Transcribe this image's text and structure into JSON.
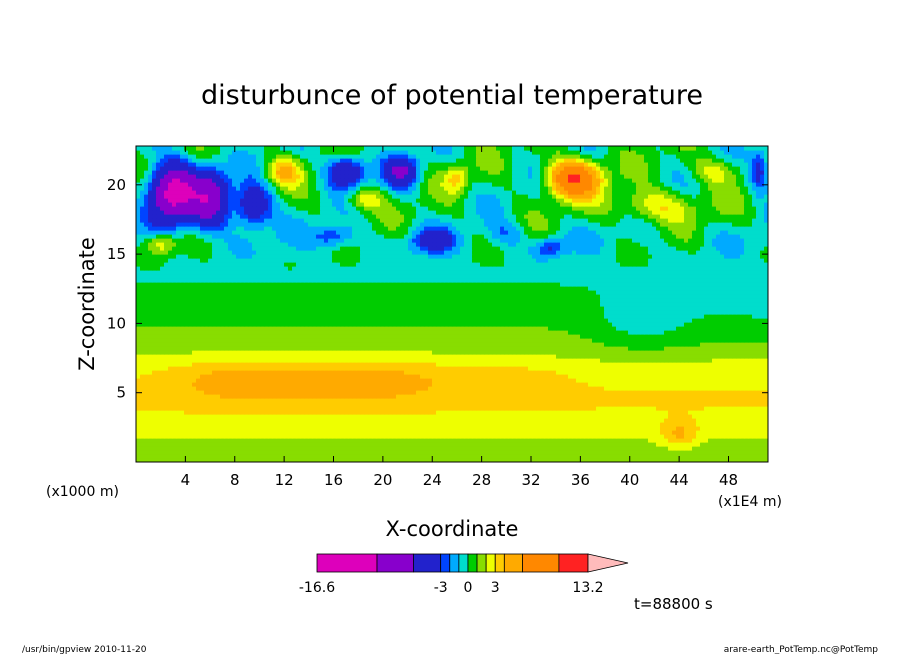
{
  "chart_data": {
    "type": "heatmap",
    "title": "disturbunce of potential temperature",
    "xlabel": "X-coordinate",
    "ylabel": "Z-coordinate",
    "x_unit": "(x1E4 m)",
    "y_unit": "(x1000 m)",
    "xlim": [
      0,
      51.2
    ],
    "ylim": [
      0,
      22.8
    ],
    "xticks": [
      4,
      8,
      12,
      16,
      20,
      24,
      28,
      32,
      36,
      40,
      44,
      48
    ],
    "yticks": [
      5,
      10,
      15,
      20
    ],
    "time_label": "t=88800 s",
    "colorbar": {
      "min_label": "-16.6",
      "max_label": "13.2",
      "tick_labels": [
        "-3",
        "0",
        "3"
      ],
      "levels": [
        -16.6,
        -10.0,
        -6.0,
        -3.0,
        -2.0,
        -1.0,
        0.0,
        1.0,
        2.0,
        3.0,
        4.0,
        6.0,
        10.0,
        13.2
      ],
      "colors": [
        "#dd00bb",
        "#8800cc",
        "#2222cc",
        "#0044ff",
        "#00aaff",
        "#00ddcc",
        "#00cc00",
        "#88dd00",
        "#eeff00",
        "#ffcc00",
        "#ffaa00",
        "#ff8800",
        "#ff2222",
        "#ff7777",
        "#ffbbbb"
      ]
    },
    "fields": {
      "base": [
        {
          "z": 1.0,
          "v": 1.5
        },
        {
          "z": 2.5,
          "v": 2.5
        },
        {
          "z": 4.5,
          "v": 3.2
        },
        {
          "z": 6.5,
          "v": 2.6
        },
        {
          "z": 8.5,
          "v": 1.4
        },
        {
          "z": 11.0,
          "v": 0.6
        },
        {
          "z": 13.5,
          "v": -0.2
        },
        {
          "z": 16.0,
          "v": -0.4
        },
        {
          "z": 18.0,
          "v": 0.0
        },
        {
          "z": 21.0,
          "v": 0.0
        },
        {
          "z": 22.8,
          "v": 0.0
        }
      ],
      "blobs": [
        {
          "x": 8.0,
          "z": 6.0,
          "a": 1.6,
          "sx": 6.0,
          "sz": 1.6
        },
        {
          "x": 19.0,
          "z": 6.0,
          "a": 1.7,
          "sx": 7.0,
          "sz": 1.6
        },
        {
          "x": 30.0,
          "z": 6.0,
          "a": 0.8,
          "sx": 5.0,
          "sz": 1.4
        },
        {
          "x": 3.0,
          "z": 19.5,
          "a": -12.0,
          "sx": 1.8,
          "sz": 2.0
        },
        {
          "x": 6.0,
          "z": 19.0,
          "a": -8.0,
          "sx": 1.5,
          "sz": 2.0
        },
        {
          "x": 9.5,
          "z": 18.5,
          "a": -6.0,
          "sx": 1.5,
          "sz": 1.5
        },
        {
          "x": 12.0,
          "z": 21.0,
          "a": 4.0,
          "sx": 1.3,
          "sz": 1.0
        },
        {
          "x": 17.0,
          "z": 21.0,
          "a": -6.0,
          "sx": 1.5,
          "sz": 1.1
        },
        {
          "x": 21.5,
          "z": 21.0,
          "a": -6.0,
          "sx": 1.3,
          "sz": 1.1
        },
        {
          "x": 16.0,
          "z": 16.3,
          "a": -3.0,
          "sx": 1.6,
          "sz": 0.8
        },
        {
          "x": 24.0,
          "z": 16.0,
          "a": -3.5,
          "sx": 1.8,
          "sz": 0.9
        },
        {
          "x": 18.5,
          "z": 19.0,
          "a": 3.0,
          "sx": 1.5,
          "sz": 0.8
        },
        {
          "x": 30.0,
          "z": 16.5,
          "a": -1.6,
          "sx": 1.5,
          "sz": 0.9
        },
        {
          "x": 26.0,
          "z": 20.5,
          "a": 3.0,
          "sx": 1.0,
          "sz": 1.0
        },
        {
          "x": 35.5,
          "z": 20.5,
          "a": 10.0,
          "sx": 2.0,
          "sz": 1.3
        },
        {
          "x": 42.0,
          "z": 18.5,
          "a": 3.0,
          "sx": 3.5,
          "sz": 1.2
        },
        {
          "x": 47.0,
          "z": 21.0,
          "a": 2.5,
          "sx": 2.0,
          "sz": 1.0
        },
        {
          "x": 2.0,
          "z": 15.8,
          "a": 3.5,
          "sx": 1.3,
          "sz": 0.8
        },
        {
          "x": 50.5,
          "z": 21.0,
          "a": -4.0,
          "sx": 0.8,
          "sz": 1.5
        },
        {
          "x": 44.0,
          "z": 2.0,
          "a": 2.0,
          "sx": 1.5,
          "sz": 1.0
        },
        {
          "x": 41.0,
          "z": 10.0,
          "a": -1.2,
          "sx": 4.0,
          "sz": 2.0
        },
        {
          "x": 33.5,
          "z": 15.5,
          "a": -3.0,
          "sx": 1.2,
          "sz": 0.7
        }
      ],
      "waves": [
        {
          "zmin": 13.5,
          "amp": 1.6,
          "kx": 0.8,
          "kz": 0.9
        }
      ]
    }
  },
  "footer": {
    "left": "/usr/bin/gpview  2010-11-20",
    "right": "arare-earth_PotTemp.nc@PotTemp"
  }
}
